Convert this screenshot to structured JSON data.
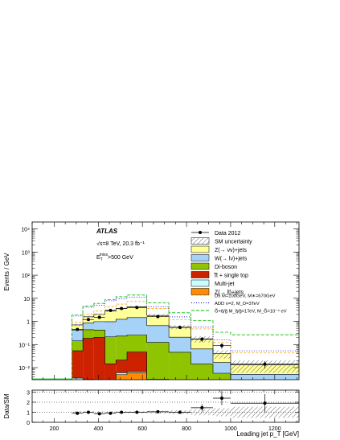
{
  "chart_data": [
    {
      "type": "bar",
      "subtype": "stacked-histogram-log",
      "title": "",
      "experiment": "ATLAS",
      "energy_lumi": "√s=8 TeV, 20.3 fb⁻¹",
      "cut": "E_T^miss>500 GeV",
      "cut_main": "E",
      "cut_sub": "T",
      "cut_sup": "miss",
      "cut_rest": ">500 GeV",
      "xlabel": "Leading jet p_T [GeV]",
      "ylabel": "Events / GeV",
      "xlim": [
        100,
        1310
      ],
      "ylim": [
        0.003,
        20000
      ],
      "yscale": "log",
      "xticks": [
        "200",
        "400",
        "600",
        "800",
        "1000",
        "1200"
      ],
      "yticks": [
        "10⁻²",
        "10⁻¹",
        "1",
        "10",
        "10²",
        "10³",
        "10⁴"
      ],
      "legend_position": "top-right",
      "bin_edges": [
        280,
        330,
        380,
        430,
        480,
        530,
        620,
        720,
        820,
        920,
        1000,
        1310
      ],
      "stack": [
        {
          "name": "Z(→ ll)+jets",
          "color": "#ff8c00",
          "values": [
            0.0005,
            0.0006,
            0.0008,
            0.0012,
            0.005,
            0.006,
            0.002,
            0.0008,
            0.0005,
            0.0003,
            0.0002
          ]
        },
        {
          "name": "Multi-jet",
          "color": "#ccffff",
          "values": [
            0.003,
            0.0025,
            0.002,
            0.0013,
            0.001,
            0.0008,
            0.0005,
            0.0002,
            0.0001,
            5e-05,
            2e-05
          ]
        },
        {
          "name": "t̅t + single top",
          "color": "#cc2200",
          "values": [
            0.05,
            0.18,
            0.2,
            0.012,
            0.015,
            0.04,
            0.0006,
            0.0002,
            0.0001,
            5e-05,
            2e-05
          ]
        },
        {
          "name": "Di-boson",
          "color": "#8fc400",
          "values": [
            0.09,
            0.25,
            0.22,
            0.2,
            0.21,
            0.21,
            0.12,
            0.045,
            0.0135,
            0.0053,
            0.0014
          ]
        },
        {
          "name": "W(→ lν)+jets",
          "color": "#a6d2f8",
          "values": [
            0.28,
            0.42,
            0.55,
            0.75,
            1.0,
            1.2,
            0.53,
            0.16,
            0.05,
            0.011,
            0.0035
          ]
        },
        {
          "name": "Z(→ νν)+jets",
          "color": "#ffff99",
          "values": [
            0.28,
            0.73,
            1.03,
            1.84,
            2.37,
            2.84,
            1.15,
            0.36,
            0.11,
            0.024,
            0.008
          ]
        }
      ],
      "sm_uncertainty": {
        "name": "SM uncertainty",
        "rel_values": [
          0.12,
          0.1,
          0.1,
          0.1,
          0.1,
          0.1,
          0.15,
          0.2,
          0.3,
          0.4,
          0.55
        ]
      },
      "data": {
        "name": "Data 2012",
        "x": [
          305,
          355,
          405,
          455,
          505,
          575,
          670,
          770,
          870,
          960,
          1155
        ],
        "y": [
          0.45,
          1.2,
          1.5,
          3.0,
          3.6,
          4.0,
          1.6,
          0.55,
          0.17,
          0.09,
          0.014
        ],
        "yerr": [
          0.06,
          0.1,
          0.12,
          0.18,
          0.2,
          0.22,
          0.12,
          0.07,
          0.04,
          0.025,
          0.005
        ]
      },
      "signals": [
        {
          "name": "D5 M=100GeV, M*=670GeV",
          "color": "#ffa500",
          "dash": "3,2",
          "values": [
            0.2,
            0.5,
            0.8,
            1.5,
            2.0,
            3.0,
            1.8,
            0.6,
            0.3,
            0.08,
            0.03
          ]
        },
        {
          "name": "ADD n=2, M_D=3TeV",
          "color": "#0000ee",
          "dash": "1,2",
          "values": [
            1.0,
            2.5,
            3.0,
            5.0,
            6.0,
            7.0,
            2.5,
            1.0,
            0.4,
            0.12,
            0.04
          ]
        },
        {
          "name": "G̃+q̃/g̃ M_q̃/g̃=1TeV, M_G̃=10⁻⁴ eV",
          "color": "#00bb00",
          "dash": "4,2",
          "values": [
            1.2,
            3.0,
            4.0,
            6.0,
            8.0,
            9.5,
            4.5,
            1.8,
            0.9,
            0.3,
            0.25
          ]
        }
      ]
    },
    {
      "type": "scatter",
      "subtype": "ratio-panel",
      "ylabel": "Data/SM",
      "xlabel": "Leading jet p_T [GeV]",
      "xlim": [
        100,
        1310
      ],
      "ylim": [
        0,
        3.2
      ],
      "yticks": [
        "0",
        "1",
        "2",
        "3"
      ],
      "xticks": [
        "200",
        "400",
        "600",
        "800",
        "1000",
        "1200"
      ],
      "x": [
        305,
        355,
        405,
        455,
        505,
        575,
        670,
        770,
        870,
        960,
        1155
      ],
      "y": [
        0.9,
        1.0,
        0.85,
        0.9,
        1.0,
        1.0,
        1.05,
        1.0,
        1.45,
        2.4,
        1.9
      ],
      "yerr": [
        0.15,
        0.1,
        0.1,
        0.08,
        0.08,
        0.08,
        0.1,
        0.15,
        0.35,
        0.7,
        0.9
      ]
    }
  ],
  "legend": {
    "items": [
      {
        "key": "data",
        "label": "Data 2012"
      },
      {
        "key": "sm_unc",
        "label": "SM uncertainty"
      },
      {
        "key": "znn",
        "label": "Z(→ νν)+jets",
        "color": "#ffff99"
      },
      {
        "key": "wln",
        "label": "W(→ lν)+jets",
        "color": "#a6d2f8"
      },
      {
        "key": "diboson",
        "label": "Di-boson",
        "color": "#8fc400"
      },
      {
        "key": "ttbar",
        "label": "t̅t + single top",
        "color": "#cc2200"
      },
      {
        "key": "multijet",
        "label": "Multi-jet",
        "color": "#ccffff"
      },
      {
        "key": "zll",
        "label": "Z(→ ll)+jets",
        "color": "#ff8c00"
      }
    ],
    "signal_items": [
      {
        "label": "D5 M=100GeV, M∗=670GeV",
        "color": "#ffa500",
        "dash": "3,2"
      },
      {
        "label": "ADD n=2, M_D=3TeV",
        "color": "#0000ee",
        "dash": "1,2"
      },
      {
        "label": "G̃+q̃/g̃ M_q̃/g̃=1TeV, M_G̃=10⁻⁴ eV",
        "color": "#00bb00",
        "dash": "4,2"
      }
    ]
  }
}
